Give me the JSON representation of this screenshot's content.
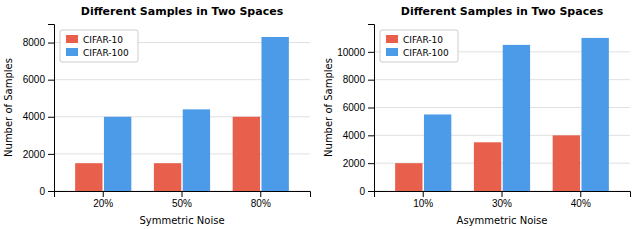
{
  "chart_data": [
    {
      "type": "bar",
      "title": "Different Samples in Two Spaces",
      "xlabel": "Symmetric Noise",
      "ylabel": "Number of Samples",
      "categories": [
        "20%",
        "50%",
        "80%"
      ],
      "series": [
        {
          "name": "CIFAR-10",
          "color": "#E8604C",
          "values": [
            1500,
            1500,
            4000
          ]
        },
        {
          "name": "CIFAR-100",
          "color": "#4C9BE8",
          "values": [
            4000,
            4400,
            8300
          ]
        }
      ],
      "ylim": [
        0,
        9000
      ],
      "yticks": [
        0,
        2000,
        4000,
        6000,
        8000
      ],
      "grid": true,
      "legend": "upper left"
    },
    {
      "type": "bar",
      "title": "Different Samples in Two Spaces",
      "xlabel": "Asymmetric Noise",
      "ylabel": "Number of Samples",
      "categories": [
        "10%",
        "30%",
        "40%"
      ],
      "series": [
        {
          "name": "CIFAR-10",
          "color": "#E8604C",
          "values": [
            2000,
            3500,
            4000
          ]
        },
        {
          "name": "CIFAR-100",
          "color": "#4C9BE8",
          "values": [
            5500,
            10500,
            11000
          ]
        }
      ],
      "ylim": [
        0,
        12000
      ],
      "yticks": [
        0,
        2000,
        4000,
        6000,
        8000,
        10000
      ],
      "grid": true,
      "legend": "upper left"
    }
  ]
}
